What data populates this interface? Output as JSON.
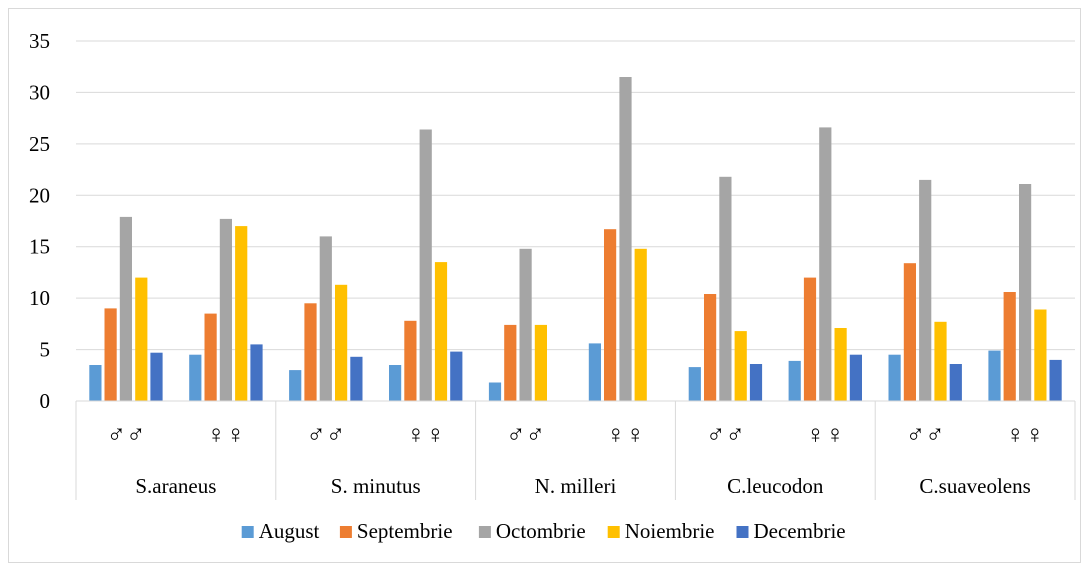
{
  "chart_data": {
    "type": "bar",
    "ylim": [
      0,
      35
    ],
    "y_ticks": [
      "0",
      "5",
      "10",
      "15",
      "20",
      "25",
      "30",
      "35"
    ],
    "grid": true,
    "legend_position": "bottom",
    "groups": [
      "S.araneus",
      "S. minutus",
      "N. milleri",
      "C.leucodon",
      "C.suaveolens"
    ],
    "categories": [
      "♂♂",
      "♀♀",
      "♂♂",
      "♀♀",
      "♂♂",
      "♀♀",
      "♂♂",
      "♀♀",
      "♂♂",
      "♀♀"
    ],
    "series": [
      {
        "name": "August",
        "color": "#5b9bd5",
        "values": [
          3.5,
          4.5,
          3.0,
          3.5,
          1.8,
          5.6,
          3.3,
          3.9,
          4.5,
          4.9
        ]
      },
      {
        "name": "Septembrie",
        "color": "#ed7d31",
        "values": [
          9.0,
          8.5,
          9.5,
          7.8,
          7.4,
          16.7,
          10.4,
          12.0,
          13.4,
          10.6
        ]
      },
      {
        "name": "Octombrie",
        "color": "#a5a5a5",
        "values": [
          17.9,
          17.7,
          16.0,
          26.4,
          14.8,
          31.5,
          21.8,
          26.6,
          21.5,
          21.1
        ]
      },
      {
        "name": "Noiembrie",
        "color": "#ffc000",
        "values": [
          12.0,
          17.0,
          11.3,
          13.5,
          7.4,
          14.8,
          6.8,
          7.1,
          7.7,
          8.9
        ]
      },
      {
        "name": "Decembrie",
        "color": "#4472c4",
        "values": [
          4.7,
          5.5,
          4.3,
          4.8,
          null,
          null,
          3.6,
          4.5,
          3.6,
          4.0
        ]
      }
    ]
  }
}
